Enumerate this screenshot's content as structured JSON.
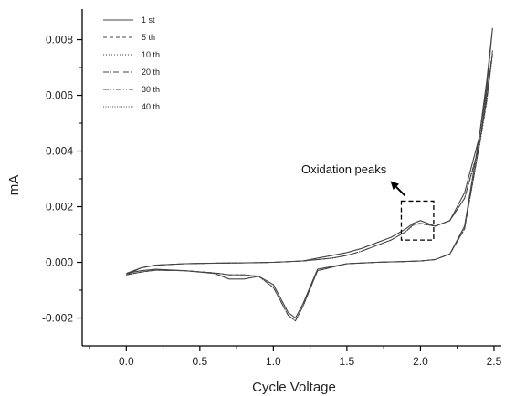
{
  "chart_data": {
    "type": "line",
    "title": "",
    "xlabel": "Cycle Voltage",
    "ylabel": "mA",
    "xlim": [
      -0.3,
      2.55
    ],
    "ylim": [
      -0.003,
      0.0091
    ],
    "xticks": [
      0.0,
      0.5,
      1.0,
      1.5,
      2.0,
      2.5
    ],
    "xtick_labels": [
      "0.0",
      "0.5",
      "1.0",
      "1.5",
      "2.0",
      "2.5"
    ],
    "yticks": [
      -0.002,
      0.0,
      0.002,
      0.004,
      0.006,
      0.008
    ],
    "ytick_labels": [
      "-0.002",
      "0.000",
      "0.002",
      "0.004",
      "0.006",
      "0.008"
    ],
    "grid": false,
    "legend_position": "top-left",
    "series": [
      {
        "name": "1 st",
        "style": "solid",
        "x": [
          0.0,
          0.1,
          0.2,
          0.4,
          0.6,
          0.7,
          0.8,
          0.9,
          1.0,
          1.1,
          1.15,
          1.2,
          1.3,
          1.5,
          1.7,
          1.9,
          2.0,
          2.1,
          2.2,
          2.3,
          2.4,
          2.45,
          2.49,
          2.45,
          2.4,
          2.3,
          2.2,
          2.1,
          2.0,
          1.95,
          1.9,
          1.8,
          1.7,
          1.6,
          1.5,
          1.4,
          1.3,
          1.2,
          1.0,
          0.8,
          0.6,
          0.4,
          0.2,
          0.1,
          0.0
        ],
        "y": [
          -0.0004,
          -0.0003,
          -0.00025,
          -0.0003,
          -0.0004,
          -0.0006,
          -0.0006,
          -0.0005,
          -0.0008,
          -0.0018,
          -0.002,
          -0.0015,
          -0.00025,
          -5e-05,
          0.0,
          3e-05,
          5e-05,
          0.0001,
          0.0003,
          0.0013,
          0.0045,
          0.0065,
          0.0084,
          0.0062,
          0.0045,
          0.0025,
          0.0015,
          0.0013,
          0.0015,
          0.0014,
          0.0012,
          0.0009,
          0.0007,
          0.0005,
          0.00035,
          0.00025,
          0.00015,
          5e-05,
          0.0,
          -2e-05,
          -3e-05,
          -5e-05,
          -0.0001,
          -0.0002,
          -0.0004
        ]
      },
      {
        "name": "5 th",
        "style": "dashed",
        "x": [
          0.0,
          0.1,
          0.2,
          0.4,
          0.6,
          0.7,
          0.8,
          0.9,
          1.0,
          1.1,
          1.15,
          1.2,
          1.3,
          1.5,
          1.7,
          1.9,
          2.0,
          2.1,
          2.2,
          2.3,
          2.4,
          2.45,
          2.49,
          2.45,
          2.4,
          2.3,
          2.2,
          2.1,
          2.0,
          1.95,
          1.9,
          1.8,
          1.7,
          1.6,
          1.5,
          1.4,
          1.3,
          1.2,
          1.0,
          0.8,
          0.6,
          0.4,
          0.2,
          0.1,
          0.0
        ],
        "y": [
          -0.00045,
          -0.00035,
          -0.00028,
          -0.0003,
          -0.00038,
          -0.00045,
          -0.00045,
          -0.0005,
          -0.0009,
          -0.0019,
          -0.0021,
          -0.0016,
          -0.0003,
          -5e-05,
          0.0,
          3e-05,
          5e-05,
          0.0001,
          0.0003,
          0.0012,
          0.0042,
          0.006,
          0.0075,
          0.0058,
          0.0042,
          0.0023,
          0.0015,
          0.0013,
          0.0014,
          0.00135,
          0.0011,
          0.0008,
          0.0006,
          0.0004,
          0.00025,
          0.00015,
          0.0001,
          5e-05,
          0.0,
          -2e-05,
          -3e-05,
          -5e-05,
          -0.0001,
          -0.0002,
          -0.00045
        ]
      },
      {
        "name": "10 th",
        "style": "dotted",
        "x": [
          0.0,
          0.1,
          0.2,
          0.4,
          0.6,
          0.7,
          0.8,
          0.9,
          1.0,
          1.1,
          1.15,
          1.2,
          1.3,
          1.5,
          1.7,
          1.9,
          2.0,
          2.1,
          2.2,
          2.3,
          2.4,
          2.45,
          2.49,
          2.45,
          2.4,
          2.3,
          2.2,
          2.1,
          2.0,
          1.95,
          1.9,
          1.8,
          1.7,
          1.6,
          1.5,
          1.4,
          1.3,
          1.2,
          1.0,
          0.8,
          0.6,
          0.4,
          0.2,
          0.1,
          0.0
        ],
        "y": [
          -0.00045,
          -0.00035,
          -0.00028,
          -0.0003,
          -0.00038,
          -0.00045,
          -0.00045,
          -0.0005,
          -0.0009,
          -0.0019,
          -0.0021,
          -0.0016,
          -0.0003,
          -5e-05,
          0.0,
          3e-05,
          5e-05,
          0.0001,
          0.0003,
          0.0012,
          0.0042,
          0.006,
          0.0074,
          0.0057,
          0.0041,
          0.0023,
          0.0015,
          0.0013,
          0.00138,
          0.00132,
          0.0011,
          0.0008,
          0.0006,
          0.0004,
          0.00025,
          0.00015,
          0.0001,
          5e-05,
          0.0,
          -2e-05,
          -3e-05,
          -5e-05,
          -0.0001,
          -0.0002,
          -0.00045
        ]
      },
      {
        "name": "20 th",
        "style": "dashdot",
        "x": [
          0.0,
          0.1,
          0.2,
          0.4,
          0.6,
          0.7,
          0.8,
          0.9,
          1.0,
          1.1,
          1.15,
          1.2,
          1.3,
          1.5,
          1.7,
          1.9,
          2.0,
          2.1,
          2.2,
          2.3,
          2.4,
          2.45,
          2.49,
          2.45,
          2.4,
          2.3,
          2.2,
          2.1,
          2.0,
          1.95,
          1.9,
          1.8,
          1.7,
          1.6,
          1.5,
          1.4,
          1.3,
          1.2,
          1.0,
          0.8,
          0.6,
          0.4,
          0.2,
          0.1,
          0.0
        ],
        "y": [
          -0.00045,
          -0.00035,
          -0.00028,
          -0.0003,
          -0.00038,
          -0.00045,
          -0.00045,
          -0.0005,
          -0.0009,
          -0.0019,
          -0.0021,
          -0.0016,
          -0.0003,
          -5e-05,
          0.0,
          3e-05,
          5e-05,
          0.0001,
          0.0003,
          0.0012,
          0.0042,
          0.006,
          0.0075,
          0.0058,
          0.0042,
          0.0023,
          0.0015,
          0.0013,
          0.0014,
          0.00135,
          0.0011,
          0.0008,
          0.0006,
          0.0004,
          0.00025,
          0.00015,
          0.0001,
          5e-05,
          0.0,
          -2e-05,
          -3e-05,
          -5e-05,
          -0.0001,
          -0.0002,
          -0.00045
        ]
      },
      {
        "name": "30 th",
        "style": "dashdotdot",
        "x": [
          0.0,
          0.1,
          0.2,
          0.4,
          0.6,
          0.7,
          0.8,
          0.9,
          1.0,
          1.1,
          1.15,
          1.2,
          1.3,
          1.5,
          1.7,
          1.9,
          2.0,
          2.1,
          2.2,
          2.3,
          2.4,
          2.45,
          2.49,
          2.45,
          2.4,
          2.3,
          2.2,
          2.1,
          2.0,
          1.95,
          1.9,
          1.8,
          1.7,
          1.6,
          1.5,
          1.4,
          1.3,
          1.2,
          1.0,
          0.8,
          0.6,
          0.4,
          0.2,
          0.1,
          0.0
        ],
        "y": [
          -0.00045,
          -0.00035,
          -0.00028,
          -0.0003,
          -0.00038,
          -0.00045,
          -0.00045,
          -0.0005,
          -0.0009,
          -0.0019,
          -0.0021,
          -0.0016,
          -0.0003,
          -5e-05,
          0.0,
          3e-05,
          5e-05,
          0.0001,
          0.0003,
          0.0012,
          0.0042,
          0.006,
          0.0076,
          0.0058,
          0.0042,
          0.0023,
          0.0015,
          0.0013,
          0.0014,
          0.00135,
          0.0011,
          0.0008,
          0.0006,
          0.0004,
          0.00025,
          0.00015,
          0.0001,
          5e-05,
          0.0,
          -2e-05,
          -3e-05,
          -5e-05,
          -0.0001,
          -0.0002,
          -0.00045
        ]
      },
      {
        "name": "40 th",
        "style": "shortdot",
        "x": [
          0.0,
          0.1,
          0.2,
          0.4,
          0.6,
          0.7,
          0.8,
          0.9,
          1.0,
          1.1,
          1.15,
          1.2,
          1.3,
          1.5,
          1.7,
          1.9,
          2.0,
          2.1,
          2.2,
          2.3,
          2.4,
          2.45,
          2.49,
          2.45,
          2.4,
          2.3,
          2.2,
          2.1,
          2.0,
          1.95,
          1.9,
          1.8,
          1.7,
          1.6,
          1.5,
          1.4,
          1.3,
          1.2,
          1.0,
          0.8,
          0.6,
          0.4,
          0.2,
          0.1,
          0.0
        ],
        "y": [
          -0.00045,
          -0.00035,
          -0.00028,
          -0.0003,
          -0.00038,
          -0.00045,
          -0.00045,
          -0.0005,
          -0.0009,
          -0.0019,
          -0.0021,
          -0.0016,
          -0.0003,
          -5e-05,
          0.0,
          3e-05,
          5e-05,
          0.0001,
          0.0003,
          0.0012,
          0.0042,
          0.006,
          0.0075,
          0.0058,
          0.0042,
          0.0023,
          0.0015,
          0.0013,
          0.0014,
          0.00135,
          0.0011,
          0.0008,
          0.0006,
          0.0004,
          0.00025,
          0.00015,
          0.0001,
          5e-05,
          0.0,
          -2e-05,
          -3e-05,
          -5e-05,
          -0.0001,
          -0.0002,
          -0.00045
        ]
      }
    ],
    "annotations": [
      {
        "text": "Oxidation peaks",
        "target_box": {
          "x": [
            1.87,
            2.09
          ],
          "y": [
            0.0008,
            0.0022
          ]
        }
      }
    ],
    "colors": {
      "line": "#444444",
      "axis": "#000000",
      "text": "#222222"
    }
  }
}
